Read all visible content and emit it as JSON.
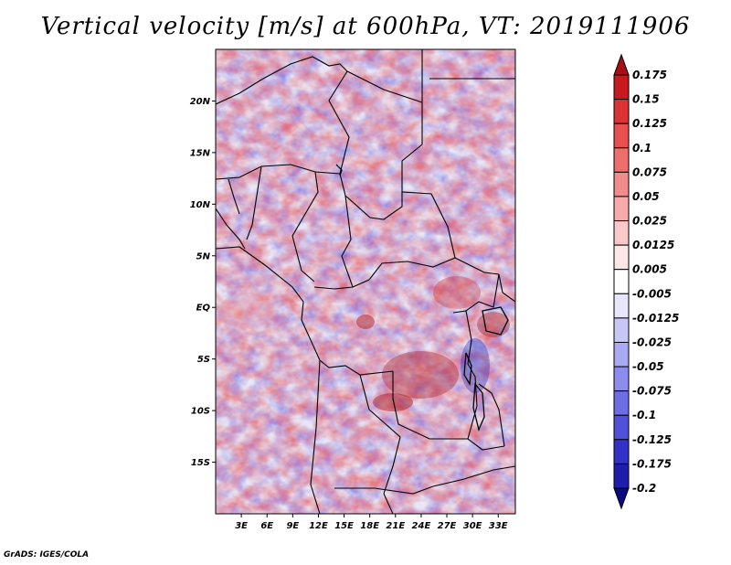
{
  "title": "Vertical velocity [m/s] at 600hPa, VT: 2019111906",
  "credit": "GrADS: IGES/COLA",
  "map": {
    "lon_range": [
      0,
      35
    ],
    "lat_range": [
      -20,
      25
    ],
    "lat_ticks": [
      "20N",
      "15N",
      "10N",
      "5N",
      "EQ",
      "5S",
      "10S",
      "15S"
    ],
    "lat_tick_values": [
      20,
      15,
      10,
      5,
      0,
      -5,
      -10,
      -15
    ],
    "lon_ticks": [
      "3E",
      "6E",
      "9E",
      "12E",
      "15E",
      "18E",
      "21E",
      "24E",
      "27E",
      "30E",
      "33E"
    ],
    "lon_tick_values": [
      3,
      6,
      9,
      12,
      15,
      18,
      21,
      24,
      27,
      30,
      33
    ],
    "field": "vertical velocity",
    "units": "m/s",
    "level": "600hPa"
  },
  "colorbar": {
    "labels": [
      "0.175",
      "0.15",
      "0.125",
      "0.1",
      "0.075",
      "0.05",
      "0.025",
      "0.0125",
      "0.005",
      "-0.005",
      "-0.0125",
      "-0.025",
      "-0.05",
      "-0.075",
      "-0.1",
      "-0.125",
      "-0.175",
      "-0.2"
    ],
    "colors": [
      "#a50f15",
      "#c8191e",
      "#dc3232",
      "#e85050",
      "#ee6e6e",
      "#f28c8c",
      "#f6aaaa",
      "#f9c8c8",
      "#fce6e6",
      "#ffffff",
      "#e6e6fc",
      "#c8c8f8",
      "#aaaaf2",
      "#8c8cec",
      "#6e6ee4",
      "#5050d8",
      "#3232c8",
      "#1e1eaa",
      "#0a0a82"
    ]
  }
}
